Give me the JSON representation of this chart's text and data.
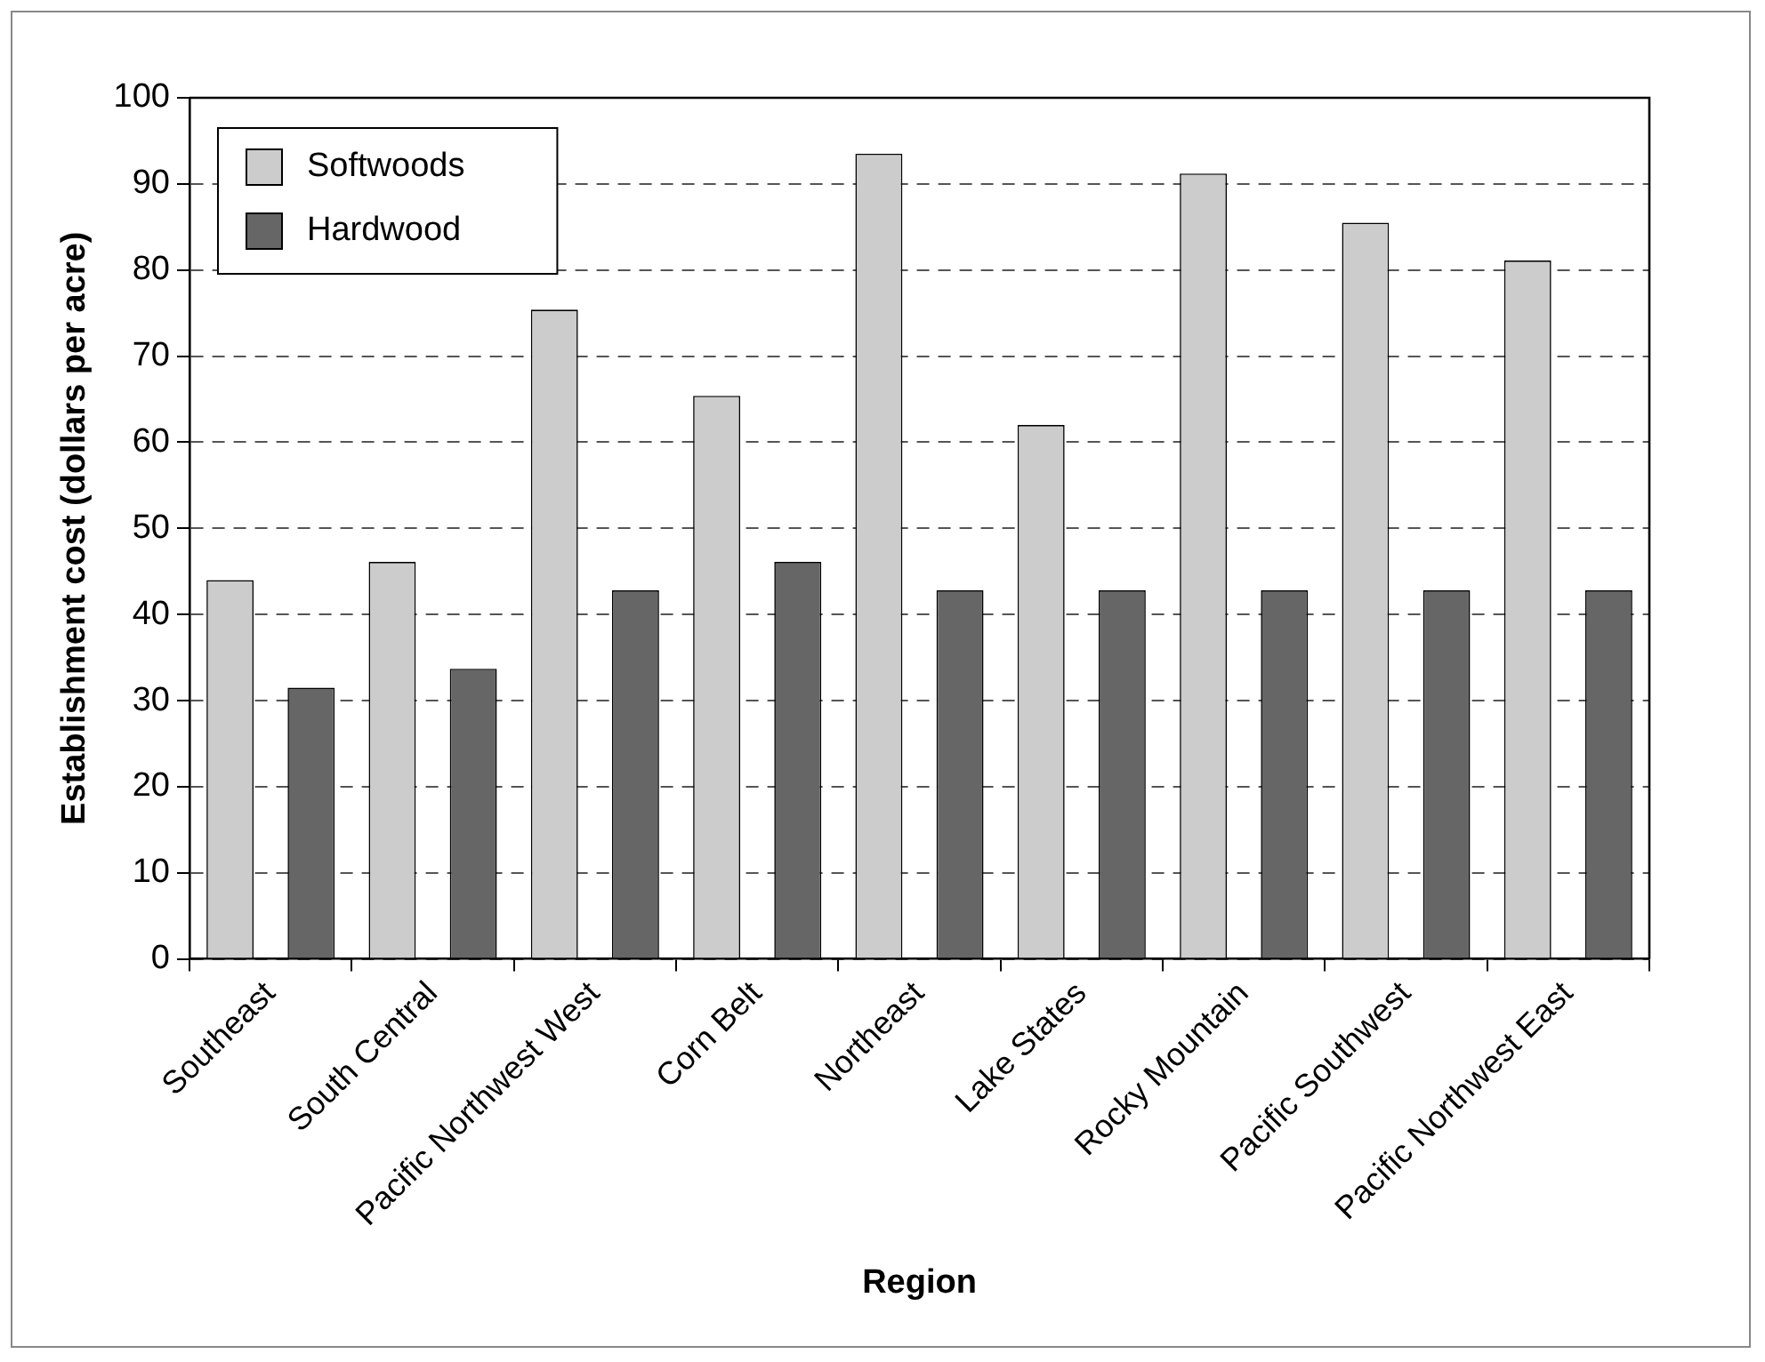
{
  "chart_data": {
    "type": "bar",
    "xlabel": "Region",
    "ylabel": "Establishment cost (dollars per acre)",
    "categories": [
      "Southeast",
      "South Central",
      "Pacific Northwest West",
      "Corn Belt",
      "Northeast",
      "Lake States",
      "Rocky Mountain",
      "Pacific Southwest",
      "Pacific Northwest East"
    ],
    "series": [
      {
        "name": "Softwoods",
        "color": "#cccccc",
        "values": [
          44,
          46.1,
          75.4,
          65.4,
          93.5,
          62,
          91.2,
          85.5,
          81.1
        ]
      },
      {
        "name": "Hardwood",
        "color": "#666666",
        "values": [
          31.5,
          33.7,
          42.8,
          46.1,
          42.8,
          42.8,
          42.8,
          42.8,
          42.8
        ]
      }
    ],
    "ylim": [
      0,
      100
    ],
    "yticks": [
      0,
      10,
      20,
      30,
      40,
      50,
      60,
      70,
      80,
      90,
      100
    ],
    "grid": "y",
    "legend": "top left"
  }
}
